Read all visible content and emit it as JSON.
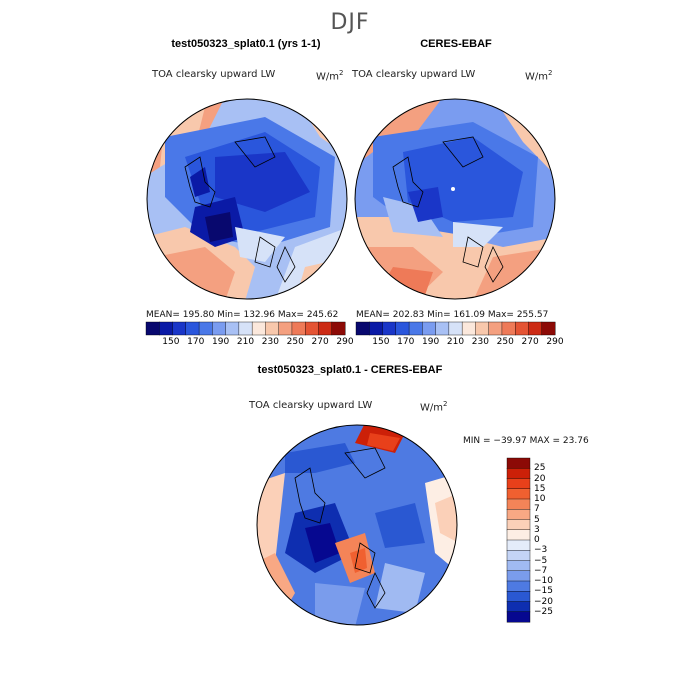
{
  "season": "DJF",
  "panels": [
    {
      "title": "test050323_splat0.1 (yrs 1-1)",
      "subtitle": "TOA clearsky upward LW",
      "units": "W/m",
      "units_sup": "2",
      "stats": "MEAN= 195.80   Min= 132.96   Max= 245.62"
    },
    {
      "title": "CERES-EBAF",
      "subtitle": "TOA clearsky upward LW",
      "units": "W/m",
      "units_sup": "2",
      "stats": "MEAN= 202.83   Min= 161.09   Max= 255.57"
    }
  ],
  "colorbar_top": {
    "colors": [
      "#08086e",
      "#0a1aa6",
      "#1a36c8",
      "#2a56dc",
      "#4a78e8",
      "#7a9cf0",
      "#a8c0f4",
      "#d6e2f8",
      "#fbe8dc",
      "#f8c8ac",
      "#f4a080",
      "#ee7a58",
      "#e45434",
      "#cc2a14",
      "#8c0a06"
    ],
    "labels": [
      "150",
      "170",
      "190",
      "210",
      "230",
      "250",
      "270",
      "290"
    ]
  },
  "diff": {
    "title": "test050323_splat0.1 - CERES-EBAF",
    "subtitle": "TOA clearsky upward LW",
    "units": "W/m",
    "units_sup": "2",
    "minmax": "MIN = −39.97  MAX =  23.76"
  },
  "colorbar_diff": {
    "colors": [
      "#8c0a06",
      "#cc2008",
      "#e8401a",
      "#f06030",
      "#f48458",
      "#f8a884",
      "#fbd0b8",
      "#fdeee4",
      "#e4ecfa",
      "#c4d4f6",
      "#a0baf2",
      "#7a9cec",
      "#4e7ae2",
      "#2a58d2",
      "#0e2eb0",
      "#060890"
    ],
    "labels": [
      "25",
      "20",
      "15",
      "10",
      "7",
      "5",
      "3",
      "0",
      "−3",
      "−5",
      "−7",
      "−10",
      "−15",
      "−20",
      "−25"
    ]
  }
}
